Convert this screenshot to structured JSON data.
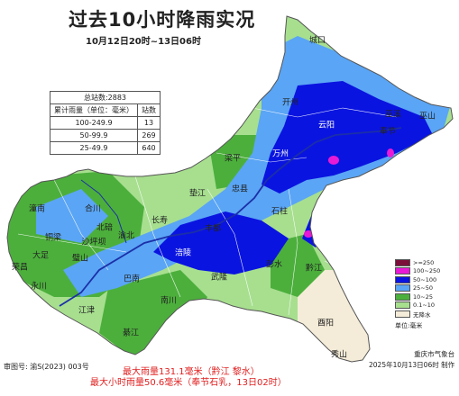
{
  "title": "过去10小时降雨实况",
  "subtitle": "10月12日20时~13日06时",
  "stats_table": {
    "total_label": "总站数:2883",
    "header_range": "累计雨量（单位：毫米）",
    "header_count": "站数",
    "rows": [
      {
        "range": "100-249.9",
        "count": "13"
      },
      {
        "range": "50-99.9",
        "count": "269"
      },
      {
        "range": "25-49.9",
        "count": "640"
      }
    ]
  },
  "places": [
    "城口",
    "开州",
    "云阳",
    "巫山",
    "巫溪",
    "奉节",
    "梁平",
    "万州",
    "垫江",
    "忠县",
    "长寿",
    "石柱",
    "丰都",
    "涪陵",
    "渝北",
    "合川",
    "潼南",
    "铜梁",
    "大足",
    "荣昌",
    "永川",
    "璧山",
    "江津",
    "北碚",
    "沙坪坝",
    "巴南",
    "南川",
    "綦江",
    "武隆",
    "彭水",
    "黔江",
    "酉阳",
    "秀山"
  ],
  "legend": {
    "items": [
      {
        "label": ">=250",
        "color": "#7a0f3a"
      },
      {
        "label": "100~250",
        "color": "#e81ad6"
      },
      {
        "label": "50~100",
        "color": "#0a14e0"
      },
      {
        "label": "25~50",
        "color": "#5aa5f5"
      },
      {
        "label": "10~25",
        "color": "#4caf3c"
      },
      {
        "label": "0.1~10",
        "color": "#a7df8f"
      },
      {
        "label": "无降水",
        "color": "#f4ecd8"
      }
    ],
    "unit": "单位:毫米"
  },
  "approval": "审图号: 渝S(2023) 003号",
  "agency": "重庆市气象台",
  "made_at": "2025年10月13日06时 制作",
  "summary": {
    "max_total": "最大雨量131.1毫米（黔江 黎水）",
    "max_hourly": "最大小时雨量50.6毫米（奉节石乳，13日02时）"
  }
}
